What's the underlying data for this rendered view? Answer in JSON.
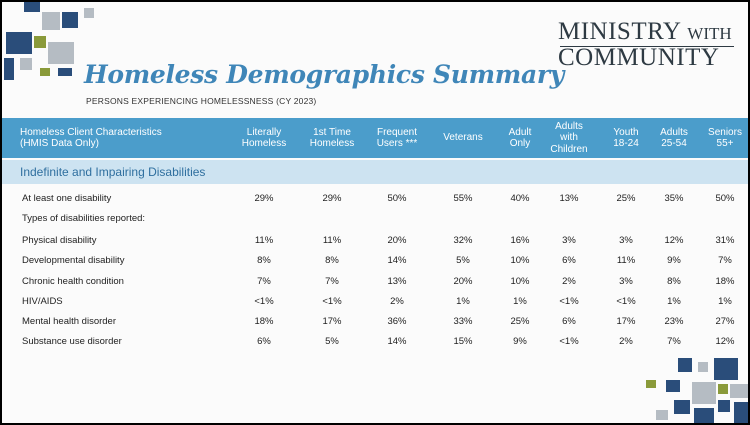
{
  "header": {
    "title": "Homeless Demographics Summary",
    "subtitle": "PERSONS EXPERIENCING HOMELESSNESS (CY 2023)"
  },
  "logo": {
    "line1": "MINISTRY",
    "line1_small": "WITH",
    "line2": "COMMUNITY"
  },
  "colors": {
    "header_bg": "#4b9dcb",
    "section_bg": "#cde3f1",
    "title": "#3f86b8",
    "square_navy": "#2a4d7a",
    "square_olive": "#8a9a3a",
    "square_gray": "#b5bcc3"
  },
  "table": {
    "first_header": [
      "Homeless Client Characteristics",
      "(HMIS Data Only)"
    ],
    "columns": [
      [
        "Literally",
        "Homeless"
      ],
      [
        "1st Time",
        "Homeless"
      ],
      [
        "Frequent",
        "Users ***"
      ],
      [
        "Veterans"
      ],
      [
        "Adult",
        "Only"
      ],
      [
        "Adults",
        "with",
        "Children"
      ],
      [
        "Youth",
        "18-24"
      ],
      [
        "Adults",
        "25-54"
      ],
      [
        "Seniors",
        "55+"
      ]
    ],
    "section": "Indefinite and Impairing Disabilities",
    "rows": [
      {
        "label": "At least one disability",
        "values": [
          "29%",
          "29%",
          "50%",
          "55%",
          "40%",
          "13%",
          "25%",
          "35%",
          "50%"
        ]
      },
      {
        "label": "Types of disabilities reported:",
        "values": []
      },
      {
        "label": "Physical disability",
        "values": [
          "11%",
          "11%",
          "20%",
          "32%",
          "16%",
          "3%",
          "3%",
          "12%",
          "31%"
        ]
      },
      {
        "label": "Developmental disability",
        "values": [
          "8%",
          "8%",
          "14%",
          "5%",
          "10%",
          "6%",
          "11%",
          "9%",
          "7%"
        ]
      },
      {
        "label": "Chronic health condition",
        "values": [
          "7%",
          "7%",
          "13%",
          "20%",
          "10%",
          "2%",
          "3%",
          "8%",
          "18%"
        ]
      },
      {
        "label": "HIV/AIDS",
        "values": [
          "<1%",
          "<1%",
          "2%",
          "1%",
          "1%",
          "<1%",
          "<1%",
          "1%",
          "1%"
        ]
      },
      {
        "label": "Mental health disorder",
        "values": [
          "18%",
          "17%",
          "36%",
          "33%",
          "25%",
          "6%",
          "17%",
          "23%",
          "27%"
        ]
      },
      {
        "label": "Substance use disorder",
        "values": [
          "6%",
          "5%",
          "14%",
          "15%",
          "9%",
          "<1%",
          "2%",
          "7%",
          "12%"
        ]
      }
    ]
  }
}
